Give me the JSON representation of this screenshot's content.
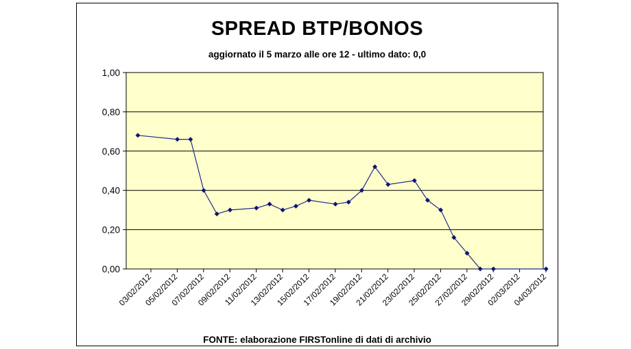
{
  "colors": {
    "plot_background": "#FFFFCC",
    "line": "#1F2A8C",
    "marker": "#0D1670",
    "grid": "#000000"
  },
  "chart_data": {
    "type": "line",
    "title": "SPREAD BTP/BONOS",
    "subtitle": "aggiornato il 5 marzo alle ore 12 - ultimo dato: 0,0",
    "source": "FONTE: elaborazione FIRSTonline di dati di archivio",
    "xlabel": "",
    "ylabel": "",
    "ylim": [
      0,
      1
    ],
    "grid": true,
    "legend": "none",
    "y_ticks": [
      "0,00",
      "0,20",
      "0,40",
      "0,60",
      "0,80",
      "1,00"
    ],
    "x_ticks": [
      "03/02/2012",
      "05/02/2012",
      "07/02/2012",
      "09/02/2012",
      "11/02/2012",
      "13/02/2012",
      "15/02/2012",
      "17/02/2012",
      "19/02/2012",
      "21/02/2012",
      "23/02/2012",
      "25/02/2012",
      "27/02/2012",
      "29/02/2012",
      "02/03/2012",
      "04/03/2012"
    ],
    "x": [
      "03/02/2012",
      "06/02/2012",
      "07/02/2012",
      "08/02/2012",
      "09/02/2012",
      "10/02/2012",
      "12/02/2012",
      "13/02/2012",
      "14/02/2012",
      "15/02/2012",
      "16/02/2012",
      "18/02/2012",
      "19/02/2012",
      "20/02/2012",
      "21/02/2012",
      "22/02/2012",
      "24/02/2012",
      "25/02/2012",
      "26/02/2012",
      "27/02/2012",
      "28/02/2012",
      "29/02/2012",
      "01/03/2012",
      "05/03/2012"
    ],
    "values": [
      0.68,
      0.66,
      0.66,
      0.4,
      0.28,
      0.3,
      0.31,
      0.33,
      0.3,
      0.32,
      0.35,
      0.33,
      0.34,
      0.4,
      0.52,
      0.43,
      0.45,
      0.35,
      0.3,
      0.16,
      0.08,
      0.0,
      0.0,
      0.0
    ]
  }
}
